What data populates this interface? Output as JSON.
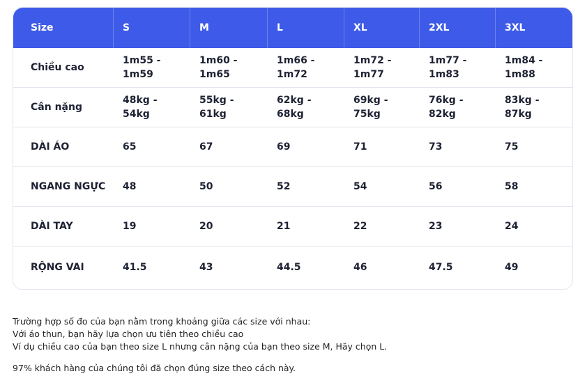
{
  "table": {
    "header": [
      "Size",
      "S",
      "M",
      "L",
      "XL",
      "2XL",
      "3XL"
    ],
    "rows": [
      [
        "Chiều cao",
        "1m55 - 1m59",
        "1m60 - 1m65",
        "1m66 - 1m72",
        "1m72 - 1m77",
        "1m77 - 1m83",
        "1m84 - 1m88"
      ],
      [
        "Cân nặng",
        "48kg - 54kg",
        "55kg - 61kg",
        "62kg - 68kg",
        "69kg - 75kg",
        "76kg - 82kg",
        "83kg - 87kg"
      ],
      [
        "DÀI ÁO",
        "65",
        "67",
        "69",
        "71",
        "73",
        "75"
      ],
      [
        "NGANG NGỰC",
        "48",
        "50",
        "52",
        "54",
        "56",
        "58"
      ],
      [
        "DÀI TAY",
        "19",
        "20",
        "21",
        "22",
        "23",
        "24"
      ],
      [
        "RỘNG VAI",
        "41.5",
        "43",
        "44.5",
        "46",
        "47.5",
        "49"
      ]
    ]
  },
  "notes": [
    "Trường hợp số đo của bạn nằm trong khoảng giữa các size với nhau:",
    "Với áo thun, bạn hãy lựa chọn ưu tiên theo chiều cao",
    "Ví dụ chiều cao của bạn theo size L nhưng cân nặng của bạn theo size M, Hãy chọn L.",
    "97% khách hàng của chúng tôi đã chọn đúng size theo cách này."
  ]
}
